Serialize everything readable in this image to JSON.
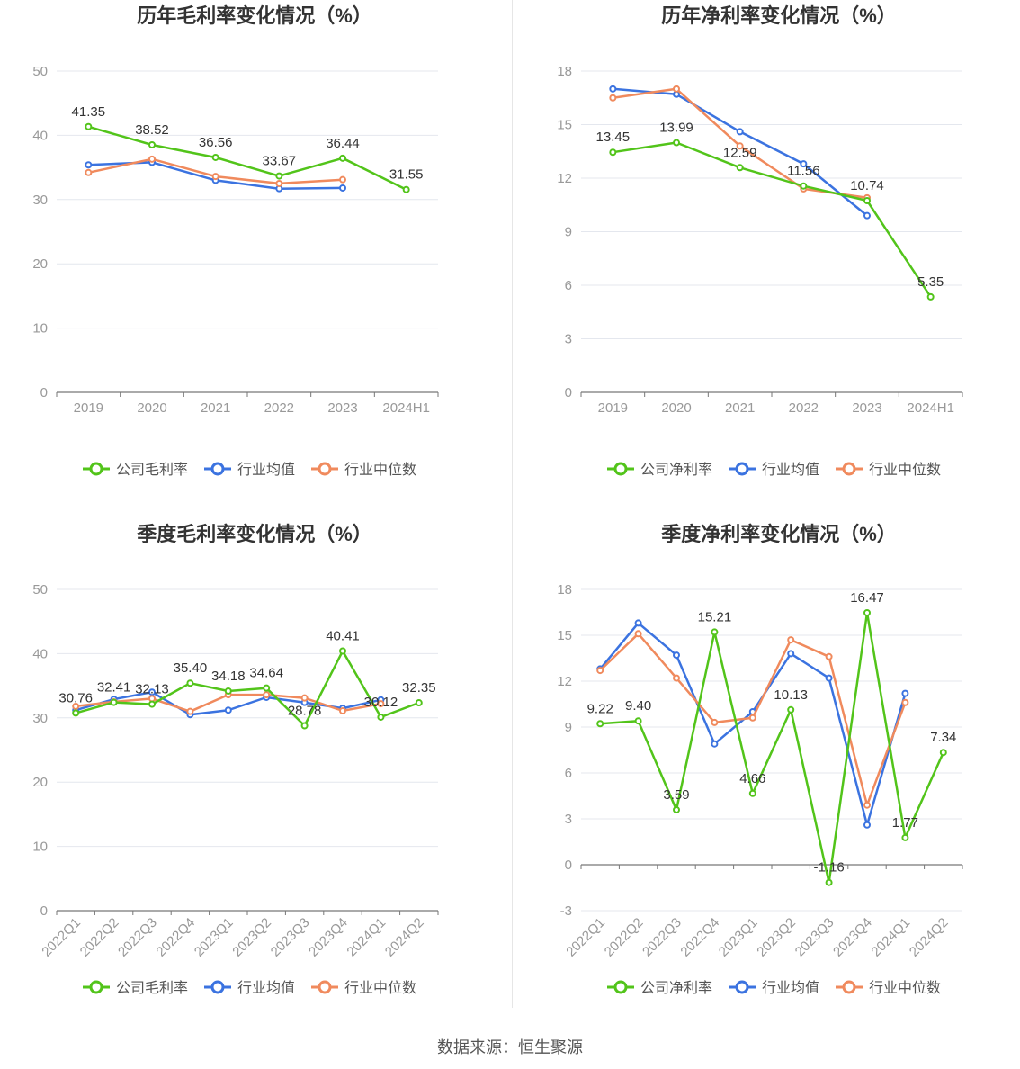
{
  "footer": {
    "source": "数据来源：恒生聚源"
  },
  "colors": {
    "company": "#52c41a",
    "average": "#3b73e0",
    "median": "#f08a5d"
  },
  "chart_data": [
    {
      "type": "line",
      "title": "历年毛利率变化情况（%）",
      "categories": [
        "2019",
        "2020",
        "2021",
        "2022",
        "2023",
        "2024H1"
      ],
      "ylim": [
        0,
        50
      ],
      "yticks": [
        "0",
        "10",
        "20",
        "30",
        "40",
        "50"
      ],
      "rotate_x": false,
      "legend_position": "bottom",
      "series": [
        {
          "name": "公司毛利率",
          "values": [
            41.35,
            38.52,
            36.56,
            33.67,
            36.44,
            31.55
          ],
          "labels": [
            "41.35",
            "38.52",
            "36.56",
            "33.67",
            "36.44",
            "31.55"
          ]
        },
        {
          "name": "行业均值",
          "values": [
            35.4,
            35.8,
            33.0,
            31.7,
            31.8,
            null
          ]
        },
        {
          "name": "行业中位数",
          "values": [
            34.2,
            36.3,
            33.6,
            32.5,
            33.1,
            null
          ]
        }
      ]
    },
    {
      "type": "line",
      "title": "历年净利率变化情况（%）",
      "categories": [
        "2019",
        "2020",
        "2021",
        "2022",
        "2023",
        "2024H1"
      ],
      "ylim": [
        0,
        18
      ],
      "yticks": [
        "0",
        "3",
        "6",
        "9",
        "12",
        "15",
        "18"
      ],
      "rotate_x": false,
      "legend_position": "bottom",
      "series": [
        {
          "name": "公司净利率",
          "values": [
            13.45,
            13.99,
            12.59,
            11.56,
            10.74,
            5.35
          ],
          "labels": [
            "13.45",
            "13.99",
            "12.59",
            "11.56",
            "10.74",
            "5.35"
          ]
        },
        {
          "name": "行业均值",
          "values": [
            17.0,
            16.7,
            14.6,
            12.8,
            9.9,
            null
          ]
        },
        {
          "name": "行业中位数",
          "values": [
            16.5,
            17.0,
            13.8,
            11.4,
            10.9,
            null
          ]
        }
      ]
    },
    {
      "type": "line",
      "title": "季度毛利率变化情况（%）",
      "categories": [
        "2022Q1",
        "2022Q2",
        "2022Q3",
        "2022Q4",
        "2023Q1",
        "2023Q2",
        "2023Q3",
        "2023Q4",
        "2024Q1",
        "2024Q2"
      ],
      "ylim": [
        0,
        50
      ],
      "yticks": [
        "0",
        "10",
        "20",
        "30",
        "40",
        "50"
      ],
      "rotate_x": true,
      "legend_position": "bottom",
      "series": [
        {
          "name": "公司毛利率",
          "values": [
            30.76,
            32.41,
            32.13,
            35.4,
            34.18,
            34.64,
            28.78,
            40.41,
            30.12,
            32.35
          ],
          "labels": [
            "30.76",
            "32.41",
            "32.13",
            "35.40",
            "34.18",
            "34.64",
            "28.78",
            "40.41",
            "30.12",
            "32.35"
          ]
        },
        {
          "name": "行业均值",
          "values": [
            31.2,
            32.9,
            34.0,
            30.5,
            31.2,
            33.2,
            32.4,
            31.5,
            32.8,
            null
          ]
        },
        {
          "name": "行业中位数",
          "values": [
            31.8,
            32.5,
            33.0,
            31.0,
            33.6,
            33.6,
            33.1,
            31.1,
            32.2,
            null
          ]
        }
      ]
    },
    {
      "type": "line",
      "title": "季度净利率变化情况（%）",
      "categories": [
        "2022Q1",
        "2022Q2",
        "2022Q3",
        "2022Q4",
        "2023Q1",
        "2023Q2",
        "2023Q3",
        "2023Q4",
        "2024Q1",
        "2024Q2"
      ],
      "ylim": [
        -3,
        18
      ],
      "yticks": [
        "-3",
        "0",
        "3",
        "6",
        "9",
        "12",
        "15",
        "18"
      ],
      "rotate_x": true,
      "legend_position": "bottom",
      "series": [
        {
          "name": "公司净利率",
          "values": [
            9.22,
            9.4,
            3.59,
            15.21,
            4.66,
            10.13,
            -1.16,
            16.47,
            1.77,
            7.34
          ],
          "labels": [
            "9.22",
            "9.40",
            "3.59",
            "15.21",
            "4.66",
            "10.13",
            "-1.16",
            "16.47",
            "1.77",
            "7.34"
          ]
        },
        {
          "name": "行业均值",
          "values": [
            12.8,
            15.8,
            13.7,
            7.9,
            10.0,
            13.8,
            12.2,
            2.6,
            11.2,
            null
          ]
        },
        {
          "name": "行业中位数",
          "values": [
            12.7,
            15.1,
            12.2,
            9.3,
            9.6,
            14.7,
            13.6,
            3.9,
            10.6,
            null
          ]
        }
      ]
    }
  ]
}
